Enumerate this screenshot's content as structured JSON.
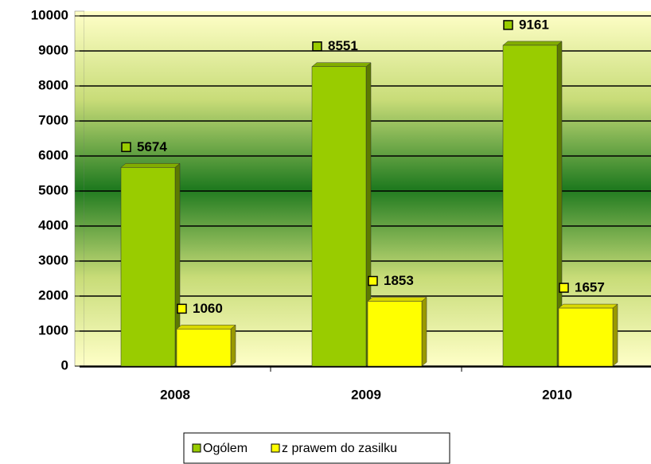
{
  "chart_data": {
    "type": "bar",
    "categories": [
      "2008",
      "2009",
      "2010"
    ],
    "series": [
      {
        "name": "Ogólem",
        "color": "#99cc00",
        "values": [
          5674,
          8551,
          9161
        ]
      },
      {
        "name": "z prawem do zasilku",
        "color": "#ffff00",
        "values": [
          1060,
          1853,
          1657
        ]
      }
    ],
    "ylim": [
      0,
      10000
    ],
    "yticks": [
      0,
      1000,
      2000,
      3000,
      4000,
      5000,
      6000,
      7000,
      8000,
      9000,
      10000
    ],
    "grid": true,
    "legend": "bottom"
  }
}
